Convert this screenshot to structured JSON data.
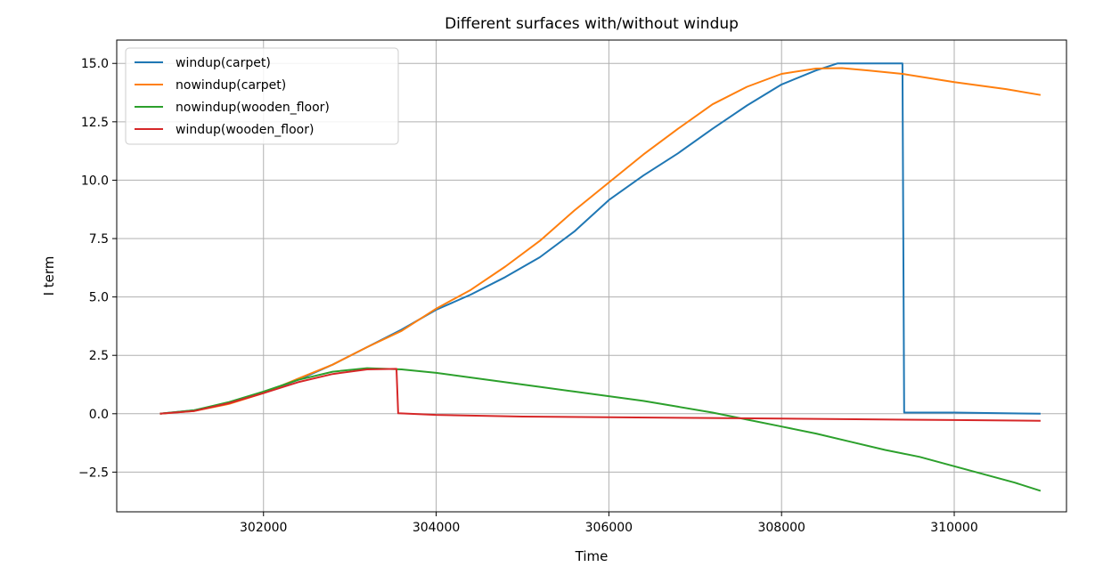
{
  "chart_data": {
    "type": "line",
    "title": "Different surfaces with/without windup",
    "xlabel": "Time",
    "ylabel": "I term",
    "xlim": [
      300300,
      311300
    ],
    "ylim": [
      -4.2,
      16.0
    ],
    "grid": true,
    "legend_position": "upper-left",
    "x_ticks": [
      {
        "value": 302000,
        "label": "302000"
      },
      {
        "value": 304000,
        "label": "304000"
      },
      {
        "value": 306000,
        "label": "306000"
      },
      {
        "value": 308000,
        "label": "308000"
      },
      {
        "value": 310000,
        "label": "310000"
      }
    ],
    "y_ticks": [
      {
        "value": -2.5,
        "label": "−2.5"
      },
      {
        "value": 0.0,
        "label": "0.0"
      },
      {
        "value": 2.5,
        "label": "2.5"
      },
      {
        "value": 5.0,
        "label": "5.0"
      },
      {
        "value": 7.5,
        "label": "7.5"
      },
      {
        "value": 10.0,
        "label": "10.0"
      },
      {
        "value": 12.5,
        "label": "12.5"
      },
      {
        "value": 15.0,
        "label": "15.0"
      }
    ],
    "series": [
      {
        "name": "windup(carpet)",
        "color": "#1f77b4",
        "points": [
          [
            300800,
            0.0
          ],
          [
            301200,
            0.15
          ],
          [
            301600,
            0.45
          ],
          [
            302000,
            0.9
          ],
          [
            302400,
            1.45
          ],
          [
            302800,
            2.1
          ],
          [
            303200,
            2.85
          ],
          [
            303600,
            3.6
          ],
          [
            304000,
            4.45
          ],
          [
            304400,
            5.1
          ],
          [
            304800,
            5.85
          ],
          [
            305200,
            6.7
          ],
          [
            305600,
            7.8
          ],
          [
            306000,
            9.15
          ],
          [
            306400,
            10.2
          ],
          [
            306800,
            11.15
          ],
          [
            307200,
            12.2
          ],
          [
            307600,
            13.2
          ],
          [
            308000,
            14.1
          ],
          [
            308400,
            14.7
          ],
          [
            308650,
            15.0
          ],
          [
            309400,
            15.0
          ],
          [
            309420,
            0.05
          ],
          [
            310000,
            0.05
          ],
          [
            311000,
            0.0
          ]
        ]
      },
      {
        "name": "nowindup(carpet)",
        "color": "#ff7f0e",
        "points": [
          [
            300800,
            0.0
          ],
          [
            301200,
            0.12
          ],
          [
            301600,
            0.42
          ],
          [
            302000,
            0.88
          ],
          [
            302400,
            1.5
          ],
          [
            302800,
            2.1
          ],
          [
            303200,
            2.85
          ],
          [
            303600,
            3.55
          ],
          [
            304000,
            4.5
          ],
          [
            304400,
            5.3
          ],
          [
            304800,
            6.3
          ],
          [
            305200,
            7.4
          ],
          [
            305600,
            8.7
          ],
          [
            306000,
            9.9
          ],
          [
            306400,
            11.1
          ],
          [
            306800,
            12.2
          ],
          [
            307200,
            13.25
          ],
          [
            307600,
            14.0
          ],
          [
            308000,
            14.55
          ],
          [
            308400,
            14.78
          ],
          [
            308700,
            14.8
          ],
          [
            309000,
            14.7
          ],
          [
            309400,
            14.55
          ],
          [
            310000,
            14.2
          ],
          [
            310600,
            13.9
          ],
          [
            311000,
            13.65
          ]
        ]
      },
      {
        "name": "nowindup(wooden_floor)",
        "color": "#2ca02c",
        "points": [
          [
            300800,
            0.0
          ],
          [
            301200,
            0.15
          ],
          [
            301600,
            0.5
          ],
          [
            302000,
            0.95
          ],
          [
            302400,
            1.45
          ],
          [
            302800,
            1.8
          ],
          [
            303200,
            1.95
          ],
          [
            303600,
            1.9
          ],
          [
            304000,
            1.75
          ],
          [
            304400,
            1.55
          ],
          [
            304800,
            1.35
          ],
          [
            305200,
            1.15
          ],
          [
            305600,
            0.95
          ],
          [
            306000,
            0.75
          ],
          [
            306400,
            0.55
          ],
          [
            306800,
            0.3
          ],
          [
            307200,
            0.05
          ],
          [
            307600,
            -0.25
          ],
          [
            308000,
            -0.55
          ],
          [
            308400,
            -0.85
          ],
          [
            308800,
            -1.2
          ],
          [
            309200,
            -1.55
          ],
          [
            309600,
            -1.85
          ],
          [
            310000,
            -2.25
          ],
          [
            310400,
            -2.65
          ],
          [
            310700,
            -2.95
          ],
          [
            311000,
            -3.3
          ]
        ]
      },
      {
        "name": "windup(wooden_floor)",
        "color": "#d62728",
        "points": [
          [
            300800,
            0.0
          ],
          [
            301200,
            0.12
          ],
          [
            301600,
            0.45
          ],
          [
            302000,
            0.88
          ],
          [
            302400,
            1.35
          ],
          [
            302800,
            1.7
          ],
          [
            303200,
            1.9
          ],
          [
            303540,
            1.92
          ],
          [
            303560,
            0.02
          ],
          [
            304000,
            -0.05
          ],
          [
            305000,
            -0.12
          ],
          [
            306000,
            -0.15
          ],
          [
            307000,
            -0.18
          ],
          [
            308000,
            -0.21
          ],
          [
            309000,
            -0.24
          ],
          [
            310000,
            -0.27
          ],
          [
            311000,
            -0.3
          ]
        ]
      }
    ]
  }
}
